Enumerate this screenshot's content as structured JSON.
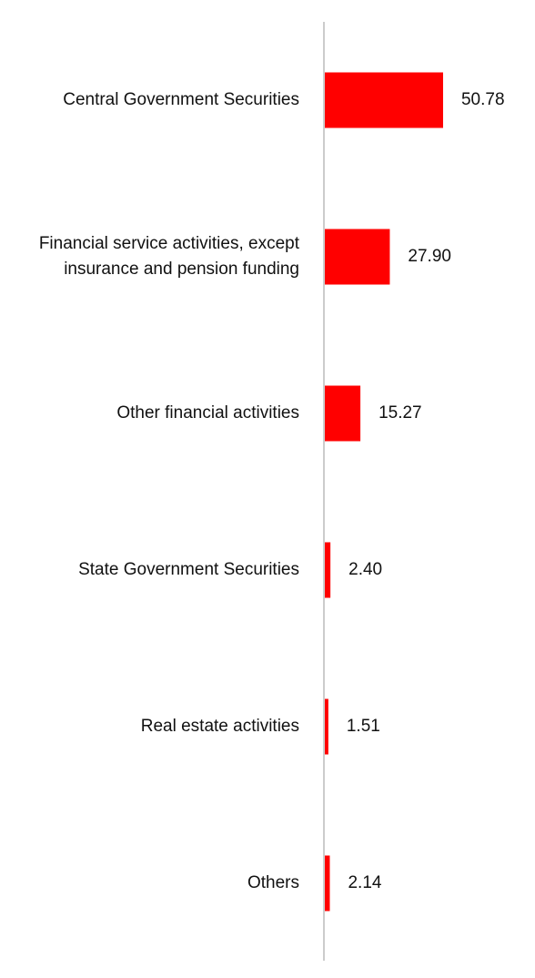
{
  "chart_data": {
    "type": "bar",
    "orientation": "horizontal",
    "title": "",
    "xlabel": "",
    "ylabel": "",
    "categories": [
      [
        "Central Government Securities"
      ],
      [
        "Financial service activities, except",
        "insurance and pension funding"
      ],
      [
        "Other financial activities"
      ],
      [
        "State Government Securities"
      ],
      [
        "Real estate activities"
      ],
      [
        "Others"
      ]
    ],
    "values": [
      50.78,
      27.9,
      15.27,
      2.4,
      1.51,
      2.14
    ],
    "value_labels": [
      "50.78",
      "27.90",
      "15.27",
      "2.40",
      "1.51",
      "2.14"
    ],
    "xlim": [
      0,
      60
    ],
    "grid": false,
    "legend": "none",
    "bar_color": "#ff0000",
    "axis_color": "#cccccc"
  }
}
